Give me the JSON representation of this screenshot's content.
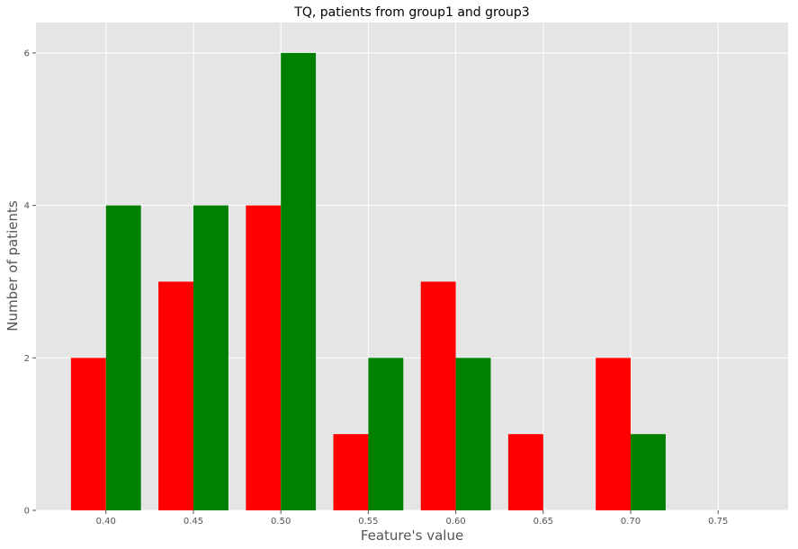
{
  "chart_data": {
    "type": "bar",
    "title": "TQ, patients from group1 and group3",
    "xlabel": "Feature's value",
    "ylabel": "Number of patients",
    "xlim": [
      0.36,
      0.79
    ],
    "ylim": [
      0,
      6.4
    ],
    "xticks": [
      "0.40",
      "0.45",
      "0.50",
      "0.55",
      "0.60",
      "0.65",
      "0.70",
      "0.75"
    ],
    "yticks": [
      "0",
      "2",
      "4",
      "6"
    ],
    "bin_edges": [
      0.38,
      0.43,
      0.48,
      0.53,
      0.58,
      0.63,
      0.68,
      0.73
    ],
    "grid": true,
    "series": [
      {
        "color": "#ff0000",
        "values": [
          2,
          3,
          4,
          1,
          3,
          1,
          2
        ]
      },
      {
        "color": "#008000",
        "values": [
          4,
          4,
          6,
          2,
          2,
          0,
          1
        ]
      }
    ],
    "background_color": "#e5e5e5"
  }
}
